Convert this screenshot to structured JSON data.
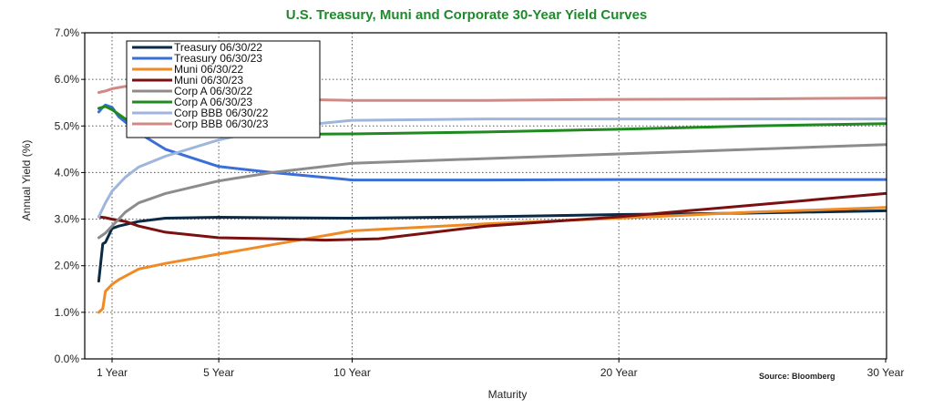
{
  "chart_data": {
    "type": "line",
    "title": "U.S. Treasury, Muni and Corporate 30-Year Yield Curves",
    "xlabel": "Maturity",
    "ylabel": "Annual Yield (%)",
    "source": "Source: Bloomberg",
    "xlim": [
      0.3,
      30
    ],
    "ylim": [
      0,
      7
    ],
    "y_ticks": [
      0,
      1,
      2,
      3,
      4,
      5,
      6,
      7
    ],
    "y_tick_labels": [
      "0.0%",
      "1.0%",
      "2.0%",
      "3.0%",
      "4.0%",
      "5.0%",
      "6.0%",
      "7.0%"
    ],
    "x_ticks": [
      1,
      5,
      10,
      20,
      30
    ],
    "x_tick_labels": [
      "1 Year",
      "5 Year",
      "10 Year",
      "20 Year",
      "30 Year"
    ],
    "grid": "dotted",
    "legend_position": "top-left",
    "series": [
      {
        "name": "Treasury 06/30/22",
        "color": "#0b2a45",
        "x": [
          0.5,
          0.65,
          0.75,
          1,
          1.25,
          2,
          3,
          5,
          7,
          10,
          15,
          20,
          25,
          30
        ],
        "y": [
          1.67,
          2.47,
          2.5,
          2.8,
          2.85,
          2.95,
          3.02,
          3.04,
          3.03,
          3.02,
          3.05,
          3.1,
          3.13,
          3.18
        ]
      },
      {
        "name": "Treasury 06/30/23",
        "color": "#3a6fd8",
        "x": [
          0.5,
          0.65,
          0.75,
          1,
          1.25,
          2,
          3,
          5,
          7,
          10,
          15,
          20,
          25,
          30
        ],
        "y": [
          5.3,
          5.4,
          5.45,
          5.4,
          5.2,
          4.85,
          4.5,
          4.13,
          4.0,
          3.84,
          3.84,
          3.85,
          3.85,
          3.85
        ]
      },
      {
        "name": "Muni 06/30/22",
        "color": "#f08a24",
        "x": [
          0.5,
          0.65,
          0.75,
          1,
          1.25,
          2,
          3,
          5,
          7,
          10,
          15,
          20,
          25,
          30
        ],
        "y": [
          1.0,
          1.08,
          1.45,
          1.6,
          1.7,
          1.93,
          2.05,
          2.25,
          2.45,
          2.75,
          2.9,
          3.02,
          3.15,
          3.25
        ]
      },
      {
        "name": "Muni 06/30/23",
        "color": "#7a1010",
        "x": [
          0.5,
          0.75,
          1,
          1.5,
          2,
          3,
          5,
          7,
          9,
          11,
          15,
          20,
          25,
          30
        ],
        "y": [
          3.05,
          3.03,
          3.0,
          2.95,
          2.85,
          2.72,
          2.6,
          2.58,
          2.55,
          2.58,
          2.85,
          3.05,
          3.3,
          3.55
        ]
      },
      {
        "name": "Corp A 06/30/22",
        "color": "#8c8c8c",
        "x": [
          0.5,
          0.75,
          1,
          1.5,
          2,
          3,
          5,
          7,
          10,
          15,
          20,
          25,
          30
        ],
        "y": [
          2.6,
          2.7,
          2.85,
          3.15,
          3.35,
          3.55,
          3.82,
          4.0,
          4.2,
          4.3,
          4.4,
          4.5,
          4.6
        ]
      },
      {
        "name": "Corp A 06/30/23",
        "color": "#1f8a1f",
        "x": [
          0.5,
          0.75,
          1,
          1.5,
          2,
          3,
          5,
          7,
          10,
          15,
          20,
          25,
          30
        ],
        "y": [
          5.38,
          5.42,
          5.35,
          5.15,
          5.0,
          4.9,
          4.85,
          4.82,
          4.83,
          4.87,
          4.93,
          5.0,
          5.05
        ]
      },
      {
        "name": "Corp BBB 06/30/22",
        "color": "#9fb6dc",
        "x": [
          0.5,
          0.75,
          1,
          1.5,
          2,
          3,
          5,
          7,
          10,
          15,
          20,
          25,
          30
        ],
        "y": [
          3.05,
          3.35,
          3.6,
          3.9,
          4.12,
          4.35,
          4.7,
          4.95,
          5.12,
          5.15,
          5.15,
          5.15,
          5.15
        ]
      },
      {
        "name": "Corp BBB 06/30/23",
        "color": "#d08a86",
        "x": [
          0.5,
          0.75,
          1,
          1.5,
          2,
          3,
          5,
          7,
          10,
          15,
          20,
          25,
          30
        ],
        "y": [
          5.72,
          5.75,
          5.8,
          5.85,
          5.8,
          5.7,
          5.62,
          5.58,
          5.55,
          5.55,
          5.57,
          5.58,
          5.6
        ]
      }
    ]
  }
}
